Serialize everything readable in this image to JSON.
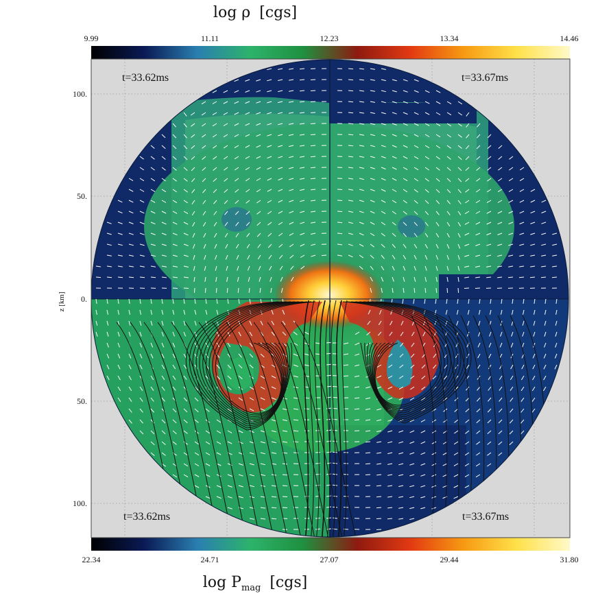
{
  "figure": {
    "top_colorbar": {
      "label_prefix": "log ρ",
      "label_unit": "[cgs]",
      "ticks": [
        "9.99",
        "11.11",
        "12.23",
        "13.34",
        "14.46"
      ]
    },
    "bottom_colorbar": {
      "label_prefix": "log P",
      "label_subscript": "mag",
      "label_unit": "[cgs]",
      "ticks": [
        "22.34",
        "24.71",
        "27.07",
        "29.44",
        "31.80"
      ]
    },
    "colormap": [
      "#000000",
      "#0a1a55",
      "#2a7fb0",
      "#2db36b",
      "#1f8f3f",
      "#8f1a10",
      "#e23a12",
      "#f79a12",
      "#ffe14a",
      "#fff9c8"
    ],
    "z_axis": {
      "label": "z [km]",
      "ticks": [
        "100.",
        "50.",
        "0.",
        "50.",
        "100."
      ]
    },
    "timestamps": {
      "top_left": "t=33.62ms",
      "top_right": "t=33.67ms",
      "bottom_left": "t=33.62ms",
      "bottom_right": "t=33.67ms"
    },
    "panel_background": "#d8d8d8"
  }
}
